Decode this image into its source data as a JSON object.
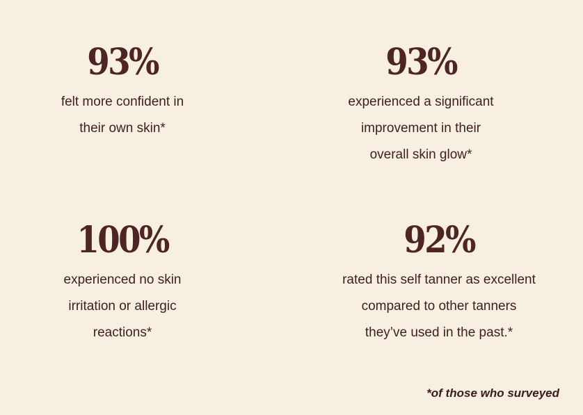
{
  "stats": [
    {
      "value": "93%",
      "lines": [
        "felt more confident in",
        "their own skin*"
      ]
    },
    {
      "value": "93%",
      "lines": [
        "experienced a significant",
        "improvement in their",
        "overall skin glow*"
      ]
    },
    {
      "value": "100%",
      "lines": [
        "experienced no skin",
        "irritation or allergic",
        "reactions*"
      ]
    },
    {
      "value": "92%",
      "lines": [
        "rated this self tanner as excellent",
        "compared to other tanners",
        "they’ve used in the past.*"
      ]
    }
  ],
  "footnote": "*of those who surveyed",
  "colors": {
    "background": "#f7efe2",
    "text": "#4f2424"
  }
}
